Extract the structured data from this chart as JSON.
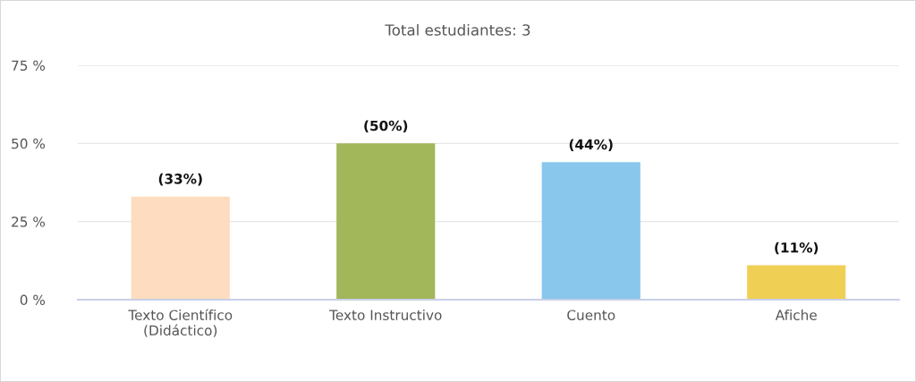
{
  "chart_data": {
    "type": "bar",
    "title": "Total estudiantes: 3",
    "categories": [
      "Texto Científico\n(Didáctico)",
      "Texto Instructivo",
      "Cuento",
      "Afiche"
    ],
    "values": [
      33,
      50,
      44,
      11
    ],
    "value_labels": [
      "(33%)",
      "(50%)",
      "(44%)",
      "(11%)"
    ],
    "colors": [
      "#fddcbf",
      "#a2b65a",
      "#89c7ec",
      "#f0cf55"
    ],
    "ylim": [
      0,
      75
    ],
    "yticks": [
      {
        "value": 0,
        "label": "0 %"
      },
      {
        "value": 25,
        "label": "25 %"
      },
      {
        "value": 50,
        "label": "50 %"
      },
      {
        "value": 75,
        "label": "75 %"
      }
    ],
    "grid": "y",
    "legend": false
  }
}
